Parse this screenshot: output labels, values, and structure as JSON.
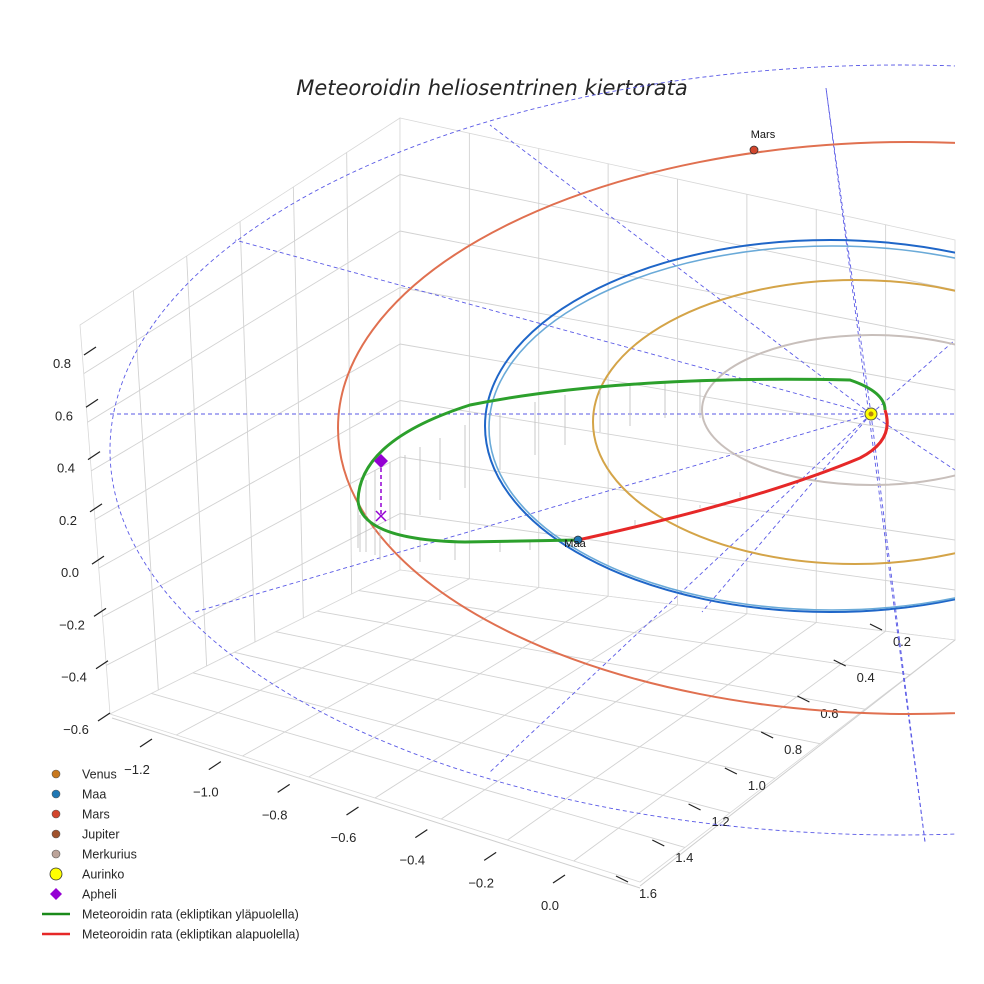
{
  "chart_data": {
    "type": "line3d",
    "title": "Meteoroidin heliosentrinen kiertorata",
    "x_ticks": [
      "−1.2",
      "−1.0",
      "−0.8",
      "−0.6",
      "−0.4",
      "−0.2",
      "0.0"
    ],
    "y_ticks": [
      "0.2",
      "0.4",
      "0.6",
      "0.8",
      "1.0",
      "1.2",
      "1.4",
      "1.6"
    ],
    "z_ticks": [
      "0.8",
      "0.6",
      "0.4",
      "0.2",
      "0.0",
      "−0.2",
      "−0.4",
      "−0.6"
    ],
    "planets": [
      {
        "name": "Merkurius",
        "orbit_radius_au": 0.39,
        "color": "#c8bfbb"
      },
      {
        "name": "Venus",
        "orbit_radius_au": 0.72,
        "color": "#d4a040"
      },
      {
        "name": "Maa",
        "orbit_radius_au": 1.0,
        "color": "#1f77b4"
      },
      {
        "name": "Mars",
        "orbit_radius_au": 1.52,
        "color": "#e07050"
      }
    ],
    "point_labels": {
      "mars": "Mars",
      "maa": "Maa"
    },
    "meteoroid": {
      "aphelion_au": 1.35,
      "perihelion_au": 0.1,
      "above_color": "#2ca02c",
      "below_color": "#e62828"
    },
    "legend": [
      {
        "label": "Venus",
        "marker": "circle",
        "color": "#c8781e"
      },
      {
        "label": "Maa",
        "marker": "circle",
        "color": "#1f77b4"
      },
      {
        "label": "Mars",
        "marker": "circle",
        "color": "#d2462d"
      },
      {
        "label": "Jupiter",
        "marker": "circle",
        "color": "#a0522d"
      },
      {
        "label": "Merkurius",
        "marker": "circle",
        "color": "#bca49a"
      },
      {
        "label": "Aurinko",
        "marker": "circle-large",
        "color": "#ffff00"
      },
      {
        "label": "Apheli",
        "marker": "diamond",
        "color": "#9400d3"
      },
      {
        "label": "Meteoroidin rata (ekliptikan yläpuolella)",
        "marker": "line",
        "color": "#1a8a1a"
      },
      {
        "label": "Meteoroidin rata (ekliptikan alapuolella)",
        "marker": "line",
        "color": "#e62828"
      }
    ]
  }
}
